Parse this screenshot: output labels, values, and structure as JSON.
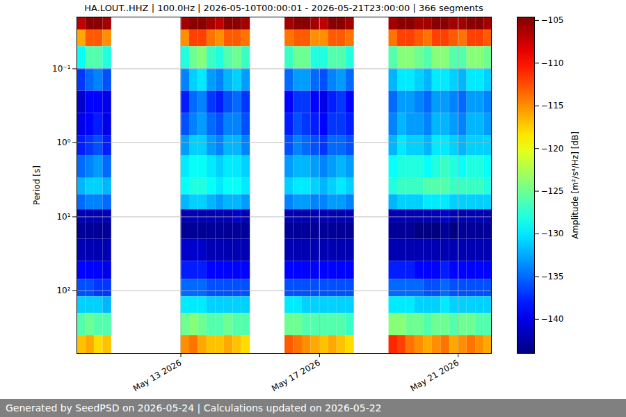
{
  "chart_data": {
    "type": "heatmap",
    "title": "HA.LOUT..HHZ | 100.0Hz | 2026-05-10T00:00:01 - 2026-05-21T23:00:00 | 366 segments",
    "caption": "Generated by SeedPSD on 2026-05-24 | Calculations updated on 2026-05-22",
    "y_label": "Period [s]",
    "log": "y",
    "grid": true,
    "xlim": [
      "2026-05-10T00:00:01",
      "2026-05-21T23:00:00"
    ],
    "xticks": [
      {
        "value": "2026-05-13T00:00:00",
        "label": "May 13 2026"
      },
      {
        "value": "2026-05-17T00:00:00",
        "label": "May 17 2026"
      },
      {
        "value": "2026-05-21T00:00:00",
        "label": "May 21 2026"
      }
    ],
    "ylim": [
      0.02,
      700
    ],
    "yticks": [
      {
        "value": 0.1,
        "label": "10⁻¹"
      },
      {
        "value": 1,
        "label": "10⁰"
      },
      {
        "value": 10,
        "label": "10¹"
      },
      {
        "value": 100,
        "label": "10²"
      }
    ],
    "colorbar": {
      "label": "Amplitude [m²/s⁴/Hz] [dB]",
      "range": [
        -144,
        -104.6
      ],
      "ticks": [
        -140,
        -135,
        -130,
        -125,
        -120,
        -115,
        -110,
        -105
      ]
    },
    "period_edges": [
      0.02,
      0.03,
      0.05,
      0.1,
      0.2,
      0.4,
      0.8,
      1.5,
      3,
      5,
      8,
      12,
      20,
      40,
      70,
      120,
      200,
      400,
      700
    ],
    "x": [
      "2026-05-10T00:00:01",
      "2026-05-10T06:00:00",
      "2026-05-10T12:00:00",
      "2026-05-10T18:00:00",
      "2026-05-11T00:00:00",
      "2026-05-11T06:00:00",
      "2026-05-11T12:00:00",
      "2026-05-11T18:00:00",
      "2026-05-12T00:00:00",
      "2026-05-12T06:00:00",
      "2026-05-12T12:00:00",
      "2026-05-12T18:00:00",
      "2026-05-13T00:00:00",
      "2026-05-13T06:00:00",
      "2026-05-13T12:00:00",
      "2026-05-13T18:00:00",
      "2026-05-14T00:00:00",
      "2026-05-14T06:00:00",
      "2026-05-14T12:00:00",
      "2026-05-14T18:00:00",
      "2026-05-15T00:00:00",
      "2026-05-15T06:00:00",
      "2026-05-15T12:00:00",
      "2026-05-15T18:00:00",
      "2026-05-16T00:00:00",
      "2026-05-16T06:00:00",
      "2026-05-16T12:00:00",
      "2026-05-16T18:00:00",
      "2026-05-17T00:00:00",
      "2026-05-17T06:00:00",
      "2026-05-17T12:00:00",
      "2026-05-17T18:00:00",
      "2026-05-18T00:00:00",
      "2026-05-18T06:00:00",
      "2026-05-18T12:00:00",
      "2026-05-18T18:00:00",
      "2026-05-19T00:00:00",
      "2026-05-19T06:00:00",
      "2026-05-19T12:00:00",
      "2026-05-19T18:00:00",
      "2026-05-20T00:00:00",
      "2026-05-20T06:00:00",
      "2026-05-20T12:00:00",
      "2026-05-20T18:00:00",
      "2026-05-21T00:00:00",
      "2026-05-21T06:00:00",
      "2026-05-21T12:00:00",
      "2026-05-21T18:00:00"
    ],
    "values": [
      [
        -107,
        -116,
        -129,
        -137,
        -141,
        -140,
        -138,
        -135,
        -132,
        -135,
        -142,
        -143,
        -142,
        -139,
        -136,
        -131,
        -126,
        -117
      ],
      [
        -105,
        -113,
        -126,
        -135,
        -139,
        -139,
        -137,
        -134,
        -131,
        -134,
        -142,
        -143,
        -142,
        -139,
        -136,
        -131,
        -125,
        -116
      ],
      [
        -105,
        -113,
        -126,
        -134,
        -139,
        -138,
        -136,
        -133,
        -131,
        -134,
        -142,
        -143,
        -142,
        -139,
        -137,
        -131,
        -126,
        -118
      ],
      [
        -106,
        -115,
        -128,
        -136,
        -140,
        -140,
        -138,
        -135,
        -132,
        -135,
        -142,
        -143,
        -142,
        -140,
        -137,
        -132,
        -126,
        -117
      ],
      null,
      null,
      null,
      null,
      null,
      null,
      null,
      null,
      [
        -106,
        -115,
        -128,
        -134,
        -138,
        -136,
        -133,
        -130,
        -129,
        -132,
        -142,
        -143,
        -141,
        -138,
        -135,
        -130,
        -125,
        -115
      ],
      [
        -105,
        -112,
        -125,
        -131,
        -135,
        -134,
        -131,
        -129,
        -128,
        -131,
        -142,
        -143,
        -141,
        -138,
        -135,
        -130,
        -124,
        -114
      ],
      [
        -105,
        -112,
        -124,
        -130,
        -134,
        -133,
        -131,
        -129,
        -128,
        -131,
        -142,
        -143,
        -141,
        -138,
        -135,
        -130,
        -125,
        -116
      ],
      [
        -106,
        -114,
        -127,
        -133,
        -137,
        -135,
        -133,
        -130,
        -129,
        -132,
        -142,
        -143,
        -142,
        -139,
        -136,
        -131,
        -126,
        -117
      ],
      [
        -107,
        -115,
        -128,
        -134,
        -138,
        -136,
        -134,
        -131,
        -130,
        -133,
        -142,
        -143,
        -142,
        -139,
        -136,
        -131,
        -126,
        -117
      ],
      [
        -105,
        -113,
        -126,
        -132,
        -136,
        -134,
        -132,
        -130,
        -129,
        -132,
        -142,
        -143,
        -142,
        -139,
        -136,
        -131,
        -125,
        -116
      ],
      [
        -105,
        -113,
        -125,
        -131,
        -135,
        -134,
        -132,
        -130,
        -129,
        -132,
        -141,
        -143,
        -142,
        -139,
        -136,
        -131,
        -126,
        -117
      ],
      [
        -106,
        -114,
        -127,
        -133,
        -137,
        -136,
        -134,
        -131,
        -130,
        -133,
        -142,
        -143,
        -142,
        -139,
        -136,
        -131,
        -126,
        -118
      ],
      null,
      null,
      null,
      null,
      [
        -106,
        -114,
        -127,
        -135,
        -139,
        -138,
        -136,
        -133,
        -131,
        -134,
        -142,
        -143,
        -142,
        -139,
        -136,
        -130,
        -125,
        -113
      ],
      [
        -105,
        -113,
        -125,
        -133,
        -137,
        -136,
        -134,
        -132,
        -130,
        -133,
        -142,
        -143,
        -142,
        -139,
        -136,
        -130,
        -125,
        -114
      ],
      [
        -105,
        -113,
        -125,
        -133,
        -137,
        -137,
        -135,
        -132,
        -130,
        -133,
        -142,
        -143,
        -142,
        -139,
        -136,
        -131,
        -126,
        -115
      ],
      [
        -106,
        -115,
        -128,
        -135,
        -139,
        -138,
        -136,
        -133,
        -131,
        -134,
        -142,
        -143,
        -142,
        -139,
        -136,
        -131,
        -126,
        -116
      ],
      [
        -107,
        -115,
        -128,
        -136,
        -140,
        -139,
        -137,
        -134,
        -132,
        -134,
        -142,
        -143,
        -142,
        -139,
        -136,
        -131,
        -126,
        -117
      ],
      [
        -105,
        -113,
        -126,
        -134,
        -138,
        -137,
        -135,
        -133,
        -131,
        -133,
        -142,
        -143,
        -142,
        -139,
        -136,
        -131,
        -126,
        -116
      ],
      [
        -105,
        -113,
        -126,
        -133,
        -137,
        -137,
        -135,
        -132,
        -130,
        -133,
        -142,
        -143,
        -142,
        -139,
        -136,
        -131,
        -126,
        -117
      ],
      [
        -106,
        -114,
        -128,
        -135,
        -139,
        -138,
        -136,
        -133,
        -131,
        -134,
        -142,
        -143,
        -142,
        -139,
        -136,
        -131,
        -127,
        -118
      ],
      null,
      null,
      null,
      null,
      [
        -106,
        -114,
        -126,
        -132,
        -135,
        -134,
        -132,
        -129,
        -128,
        -132,
        -142,
        -143,
        -142,
        -138,
        -135,
        -130,
        -124,
        -111
      ],
      [
        -105,
        -112,
        -124,
        -130,
        -133,
        -132,
        -130,
        -128,
        -127,
        -131,
        -142,
        -143,
        -142,
        -138,
        -135,
        -130,
        -124,
        -112
      ],
      [
        -105,
        -112,
        -124,
        -130,
        -133,
        -133,
        -131,
        -128,
        -127,
        -131,
        -142,
        -143,
        -142,
        -138,
        -135,
        -130,
        -125,
        -114
      ],
      [
        -106,
        -113,
        -125,
        -131,
        -134,
        -133,
        -131,
        -128,
        -127,
        -131,
        -142,
        -144,
        -142,
        -139,
        -135,
        -131,
        -125,
        -115
      ],
      [
        -106,
        -114,
        -126,
        -132,
        -135,
        -134,
        -132,
        -129,
        -126,
        -130,
        -142,
        -144,
        -142,
        -139,
        -136,
        -131,
        -126,
        -116
      ],
      [
        -105,
        -112,
        -124,
        -130,
        -133,
        -132,
        -130,
        -128,
        -126,
        -130,
        -142,
        -144,
        -142,
        -139,
        -136,
        -131,
        -125,
        -115
      ],
      [
        -105,
        -112,
        -124,
        -130,
        -133,
        -132,
        -130,
        -127,
        -126,
        -130,
        -141,
        -143,
        -142,
        -138,
        -135,
        -130,
        -125,
        -114
      ],
      [
        -106,
        -113,
        -126,
        -131,
        -134,
        -133,
        -131,
        -128,
        -127,
        -131,
        -142,
        -144,
        -142,
        -139,
        -136,
        -131,
        -126,
        -116
      ],
      [
        -106,
        -114,
        -126,
        -132,
        -135,
        -134,
        -132,
        -129,
        -127,
        -131,
        -142,
        -143,
        -142,
        -139,
        -136,
        -131,
        -125,
        -115
      ],
      [
        -105,
        -112,
        -124,
        -130,
        -133,
        -132,
        -131,
        -128,
        -127,
        -131,
        -142,
        -143,
        -142,
        -139,
        -136,
        -131,
        -125,
        -114
      ],
      [
        -105,
        -112,
        -124,
        -130,
        -133,
        -132,
        -131,
        -128,
        -127,
        -131,
        -142,
        -143,
        -142,
        -139,
        -136,
        -131,
        -126,
        -115
      ],
      [
        -106,
        -113,
        -125,
        -131,
        -134,
        -133,
        -131,
        -129,
        -128,
        -131,
        -142,
        -143,
        -142,
        -139,
        -136,
        -131,
        -126,
        -116
      ]
    ]
  }
}
